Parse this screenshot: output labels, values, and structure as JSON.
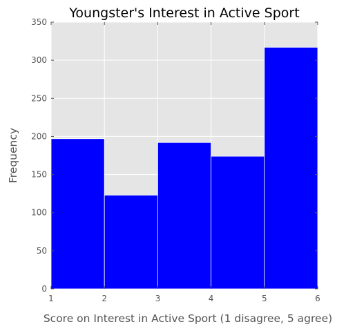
{
  "chart_data": {
    "type": "bar",
    "title": "Youngster's Interest in Active Sport",
    "xlabel": "Score on Interest in Active Sport (1 disagree, 5 agree)",
    "ylabel": "Frequency",
    "bin_edges": [
      1,
      2,
      3,
      4,
      5,
      6
    ],
    "values": [
      197,
      123,
      192,
      174,
      317
    ],
    "xlim": [
      1,
      6
    ],
    "ylim": [
      0,
      350
    ],
    "xticks": [
      1,
      2,
      3,
      4,
      5,
      6
    ],
    "yticks": [
      0,
      50,
      100,
      150,
      200,
      250,
      300,
      350
    ],
    "grid": true,
    "bar_color": "#0000ff",
    "background_color": "#e5e5e5",
    "grid_color": "#ffffff"
  }
}
